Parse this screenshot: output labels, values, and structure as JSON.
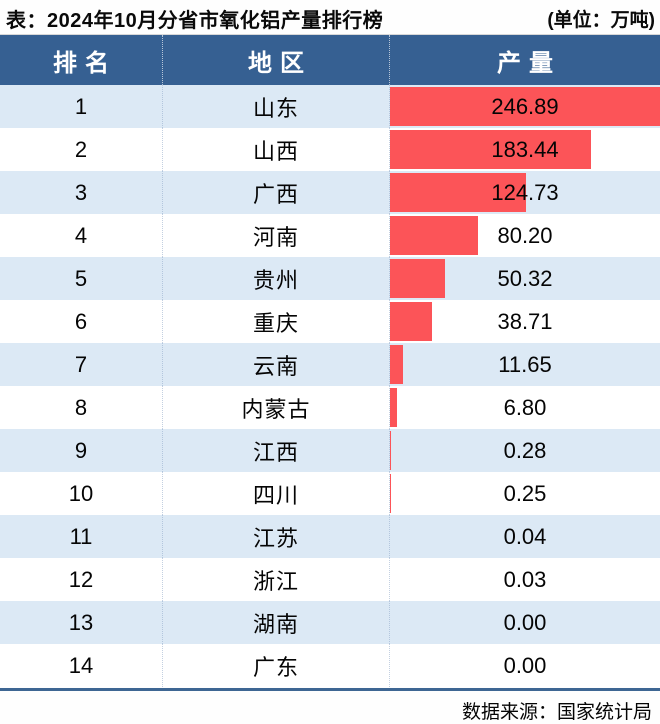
{
  "title": "表：2024年10月分省市氧化铝产量排行榜",
  "unit": "(单位：万吨)",
  "source": "数据来源：国家统计局",
  "columns": [
    "排名",
    "地区",
    "产量"
  ],
  "rows": [
    {
      "rank": "1",
      "region": "山东",
      "value": "246.89"
    },
    {
      "rank": "2",
      "region": "山西",
      "value": "183.44"
    },
    {
      "rank": "3",
      "region": "广西",
      "value": "124.73"
    },
    {
      "rank": "4",
      "region": "河南",
      "value": "80.20"
    },
    {
      "rank": "5",
      "region": "贵州",
      "value": "50.32"
    },
    {
      "rank": "6",
      "region": "重庆",
      "value": "38.71"
    },
    {
      "rank": "7",
      "region": "云南",
      "value": "11.65"
    },
    {
      "rank": "8",
      "region": "内蒙古",
      "value": "6.80"
    },
    {
      "rank": "9",
      "region": "江西",
      "value": "0.28"
    },
    {
      "rank": "10",
      "region": "四川",
      "value": "0.25"
    },
    {
      "rank": "11",
      "region": "江苏",
      "value": "0.04"
    },
    {
      "rank": "12",
      "region": "浙江",
      "value": "0.03"
    },
    {
      "rank": "13",
      "region": "湖南",
      "value": "0.00"
    },
    {
      "rank": "14",
      "region": "广东",
      "value": "0.00"
    }
  ],
  "chart_data": {
    "type": "bar",
    "orientation": "horizontal",
    "title": "表：2024年10月分省市氧化铝产量排行榜",
    "unit_label": "(单位：万吨)",
    "ylabel": "地区",
    "xlabel": "产量 (万吨)",
    "categories": [
      "山东",
      "山西",
      "广西",
      "河南",
      "贵州",
      "重庆",
      "云南",
      "内蒙古",
      "江西",
      "四川",
      "江苏",
      "浙江",
      "湖南",
      "广东"
    ],
    "values": [
      246.89,
      183.44,
      124.73,
      80.2,
      50.32,
      38.71,
      11.65,
      6.8,
      0.28,
      0.25,
      0.04,
      0.03,
      0.0,
      0.0
    ],
    "xlim": [
      0,
      246.89
    ],
    "grid": false,
    "legend": false,
    "value_labels": "centered-in-column",
    "source": "数据来源：国家统计局"
  },
  "colors": {
    "header_bg": "#366092",
    "row_alt": "#dce9f5",
    "bar": "#fc5458",
    "rule": "#3e6693"
  }
}
